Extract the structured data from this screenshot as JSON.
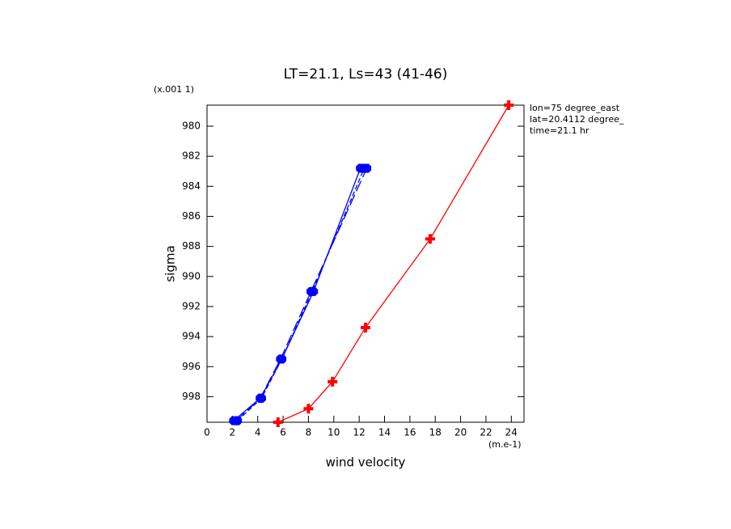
{
  "chart_data": {
    "type": "line",
    "title": "LT=21.1, Ls=43 (41-46)",
    "x_label": "wind velocity",
    "y_label": "sigma",
    "x_unit": "(m.e-1)",
    "y_unit": "(x.001 1)",
    "annotations": [
      "lon=75 degree_east",
      "lat=20.4112 degree_",
      "time=21.1 hr"
    ],
    "xlim": [
      0,
      25
    ],
    "xticks": [
      0,
      2,
      4,
      6,
      8,
      10,
      12,
      14,
      16,
      18,
      20,
      22,
      24
    ],
    "ylim": [
      999.7,
      978.6
    ],
    "yticks": [
      980,
      982,
      984,
      986,
      988,
      990,
      992,
      994,
      996,
      998
    ],
    "series": [
      {
        "color": "#0000ff",
        "dash": "solid",
        "marker": "octagon",
        "x": [
          2.1,
          4.2,
          5.9,
          8.4,
          12.1
        ],
        "values": [
          999.6,
          998.1,
          995.5,
          991.0,
          982.8
        ]
      },
      {
        "color": "#0000ff",
        "dash": "short",
        "marker": "octagon",
        "x": [
          2.4,
          4.3,
          5.9,
          8.3,
          12.4
        ],
        "values": [
          999.6,
          998.1,
          995.5,
          991.0,
          982.8
        ]
      },
      {
        "color": "#0000ff",
        "dash": "long",
        "marker": "octagon",
        "x": [
          2.3,
          4.2,
          5.8,
          8.2,
          12.6
        ],
        "values": [
          999.6,
          998.1,
          995.5,
          991.0,
          982.8
        ]
      },
      {
        "color": "#ff0000",
        "dash": "solid",
        "marker": "plus",
        "x": [
          5.6,
          8.0,
          9.9,
          12.5,
          17.6,
          23.8
        ],
        "values": [
          999.7,
          998.8,
          997.0,
          993.4,
          987.5,
          978.6
        ]
      }
    ]
  }
}
